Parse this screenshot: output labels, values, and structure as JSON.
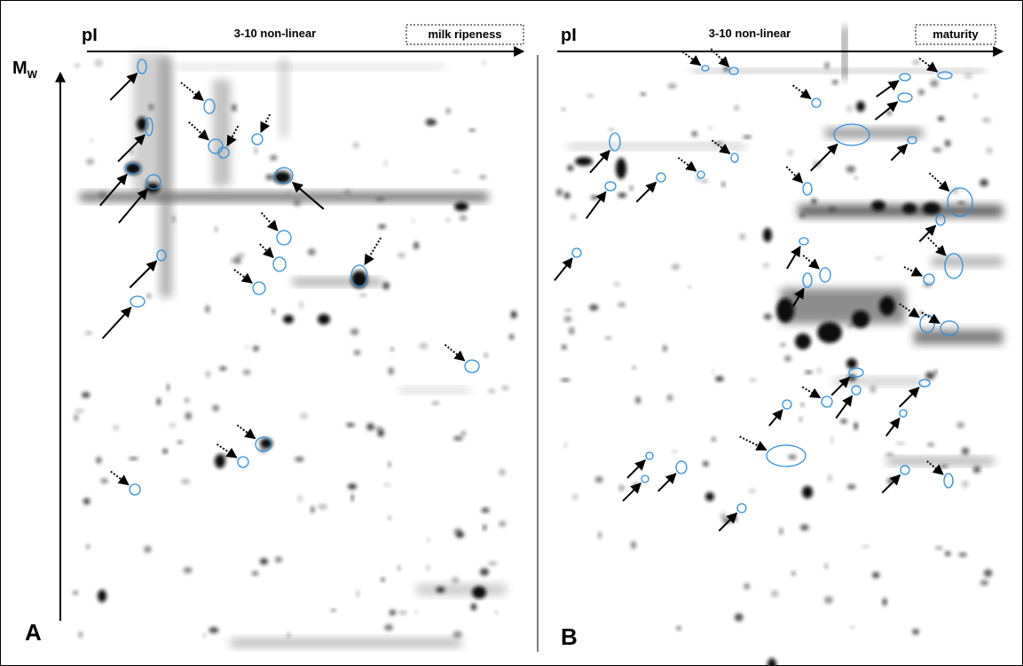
{
  "panels": [
    {
      "ph_label": "pI",
      "range_label": "3-10 non-linear",
      "stage": "milk ripeness",
      "letter": "A"
    },
    {
      "ph_label": "pI",
      "range_label": "3-10 non-linear",
      "stage": "maturity",
      "letter": "B"
    }
  ],
  "mw_axis": {
    "main": "M",
    "sub": "W"
  }
}
